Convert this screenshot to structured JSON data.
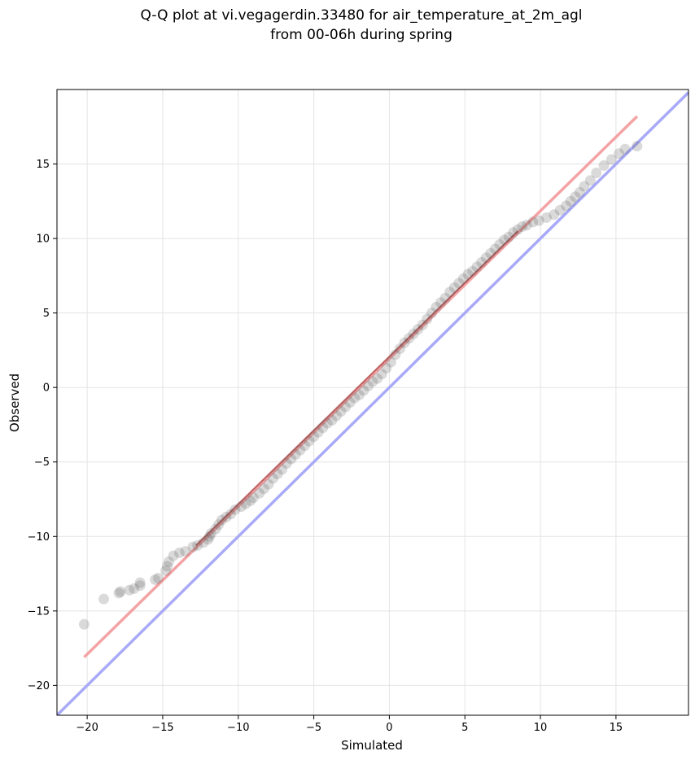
{
  "chart_data": {
    "type": "scatter",
    "title_line1": "Q-Q plot at vi.vegagerdin.33480 for air_temperature_at_2m_agl",
    "title_line2": "from 00-06h during spring",
    "xlabel": "Simulated",
    "ylabel": "Observed",
    "xlim": [
      -22,
      19.8
    ],
    "ylim": [
      -22,
      20
    ],
    "xticks": [
      -20,
      -15,
      -10,
      -5,
      0,
      5,
      10,
      15
    ],
    "yticks": [
      -20,
      -15,
      -10,
      -5,
      0,
      5,
      10,
      15
    ],
    "xtick_labels": [
      "−20",
      "−15",
      "−10",
      "−5",
      "0",
      "5",
      "10",
      "15"
    ],
    "ytick_labels": [
      "−20",
      "−15",
      "−10",
      "−5",
      "0",
      "5",
      "10",
      "15"
    ],
    "grid": true,
    "colors": {
      "points": "#555555",
      "fit_line": "#f4a3a5",
      "identity_line": "#a9aaf7",
      "dense_fit": "#8b0000"
    },
    "identity_line": {
      "x": [
        -22,
        19.8
      ],
      "y": [
        -22,
        19.8
      ]
    },
    "fit_line": {
      "x": [
        -20.2,
        16.4
      ],
      "y": [
        -18.1,
        18.2
      ]
    },
    "points": [
      [
        -20.2,
        -15.9
      ],
      [
        -18.9,
        -14.2
      ],
      [
        -17.9,
        -13.8
      ],
      [
        -17.8,
        -13.7
      ],
      [
        -17.2,
        -13.6
      ],
      [
        -16.9,
        -13.5
      ],
      [
        -16.5,
        -13.3
      ],
      [
        -16.5,
        -13.1
      ],
      [
        -15.5,
        -12.9
      ],
      [
        -15.3,
        -12.8
      ],
      [
        -14.8,
        -12.3
      ],
      [
        -14.7,
        -12.0
      ],
      [
        -14.6,
        -11.7
      ],
      [
        -14.3,
        -11.3
      ],
      [
        -13.9,
        -11.1
      ],
      [
        -13.5,
        -11.0
      ],
      [
        -13.0,
        -10.7
      ],
      [
        -12.7,
        -10.6
      ],
      [
        -12.3,
        -10.4
      ],
      [
        -12.0,
        -10.2
      ],
      [
        -11.9,
        -10.0
      ],
      [
        -11.8,
        -9.8
      ],
      [
        -11.5,
        -9.5
      ],
      [
        -11.3,
        -9.2
      ],
      [
        -11.1,
        -8.9
      ],
      [
        -10.8,
        -8.7
      ],
      [
        -10.5,
        -8.5
      ],
      [
        -10.2,
        -8.2
      ],
      [
        -9.8,
        -8.0
      ],
      [
        -9.5,
        -7.8
      ],
      [
        -9.2,
        -7.6
      ],
      [
        -9.0,
        -7.4
      ],
      [
        -8.6,
        -7.1
      ],
      [
        -8.3,
        -6.8
      ],
      [
        -8.0,
        -6.5
      ],
      [
        -7.7,
        -6.1
      ],
      [
        -7.4,
        -5.8
      ],
      [
        -7.1,
        -5.5
      ],
      [
        -6.8,
        -5.1
      ],
      [
        -6.5,
        -4.8
      ],
      [
        -6.2,
        -4.5
      ],
      [
        -5.9,
        -4.2
      ],
      [
        -5.6,
        -3.9
      ],
      [
        -5.3,
        -3.6
      ],
      [
        -5.0,
        -3.3
      ],
      [
        -4.7,
        -3.0
      ],
      [
        -4.4,
        -2.7
      ],
      [
        -4.1,
        -2.4
      ],
      [
        -3.8,
        -2.2
      ],
      [
        -3.5,
        -1.9
      ],
      [
        -3.2,
        -1.6
      ],
      [
        -2.9,
        -1.3
      ],
      [
        -2.6,
        -1.0
      ],
      [
        -2.3,
        -0.7
      ],
      [
        -2.0,
        -0.5
      ],
      [
        -1.7,
        -0.2
      ],
      [
        -1.4,
        0.1
      ],
      [
        -1.1,
        0.4
      ],
      [
        -0.8,
        0.6
      ],
      [
        -0.5,
        0.9
      ],
      [
        -0.2,
        1.3
      ],
      [
        0.1,
        1.7
      ],
      [
        0.4,
        2.2
      ],
      [
        0.7,
        2.6
      ],
      [
        1.0,
        3.0
      ],
      [
        1.3,
        3.3
      ],
      [
        1.6,
        3.6
      ],
      [
        1.9,
        3.9
      ],
      [
        2.2,
        4.2
      ],
      [
        2.5,
        4.6
      ],
      [
        2.8,
        5.0
      ],
      [
        3.1,
        5.4
      ],
      [
        3.4,
        5.7
      ],
      [
        3.7,
        6.0
      ],
      [
        4.0,
        6.4
      ],
      [
        4.3,
        6.7
      ],
      [
        4.6,
        7.0
      ],
      [
        4.9,
        7.3
      ],
      [
        5.2,
        7.6
      ],
      [
        5.5,
        7.8
      ],
      [
        5.8,
        8.1
      ],
      [
        6.1,
        8.4
      ],
      [
        6.4,
        8.7
      ],
      [
        6.7,
        9.0
      ],
      [
        7.0,
        9.3
      ],
      [
        7.3,
        9.6
      ],
      [
        7.6,
        9.9
      ],
      [
        7.9,
        10.1
      ],
      [
        8.2,
        10.4
      ],
      [
        8.5,
        10.6
      ],
      [
        8.8,
        10.8
      ],
      [
        9.1,
        10.9
      ],
      [
        9.5,
        11.1
      ],
      [
        9.9,
        11.2
      ],
      [
        10.4,
        11.4
      ],
      [
        10.9,
        11.6
      ],
      [
        11.3,
        11.9
      ],
      [
        11.7,
        12.2
      ],
      [
        12.0,
        12.5
      ],
      [
        12.3,
        12.8
      ],
      [
        12.6,
        13.1
      ],
      [
        12.9,
        13.5
      ],
      [
        13.3,
        13.9
      ],
      [
        13.7,
        14.4
      ],
      [
        14.2,
        14.9
      ],
      [
        14.7,
        15.3
      ],
      [
        15.2,
        15.7
      ],
      [
        15.6,
        16.0
      ],
      [
        16.4,
        16.2
      ]
    ]
  }
}
